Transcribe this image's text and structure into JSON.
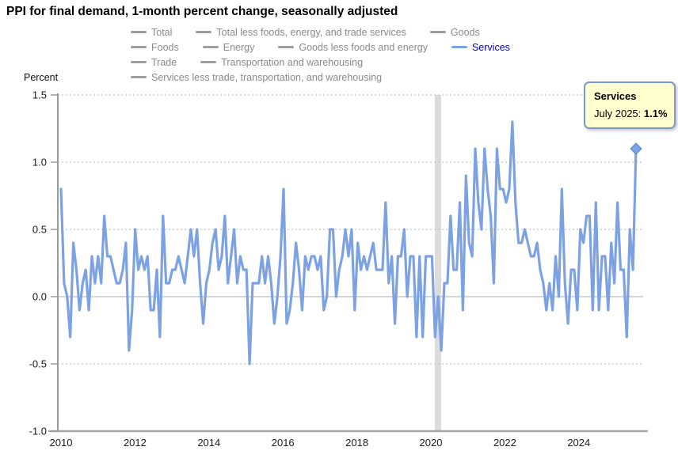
{
  "tooltip": {
    "series": "Services",
    "label": "July 2025:",
    "value": "1.1%"
  },
  "legend": {
    "rows": [
      [
        {
          "label": "Total",
          "active": false
        },
        {
          "label": "Total less foods, energy, and trade services",
          "active": false
        },
        {
          "label": "Goods",
          "active": false
        }
      ],
      [
        {
          "label": "Foods",
          "active": false
        },
        {
          "label": "Energy",
          "active": false
        },
        {
          "label": "Goods less foods and energy",
          "active": false
        },
        {
          "label": "Services",
          "active": true
        }
      ],
      [
        {
          "label": "Trade",
          "active": false
        },
        {
          "label": "Transportation and warehousing",
          "active": false
        }
      ],
      [
        {
          "label": "Services less trade, transportation, and warehousing",
          "active": false
        }
      ]
    ]
  },
  "colors": {
    "line": "#7ca2e4",
    "active_legend_text": "#0000cc",
    "inactive_legend": "#8a8a8a",
    "tooltip_bg": "#ffffd0",
    "tooltip_border": "#7d99cc",
    "recession_band": "#dcdcdc"
  },
  "chart_data": {
    "type": "line",
    "title": "PPI for final demand, 1-month percent change, seasonally adjusted",
    "ylabel": "Percent",
    "ylim": [
      -1.0,
      1.5
    ],
    "yticks": [
      "1.5",
      "1.0",
      "0.5",
      "0.0",
      "-0.5",
      "-1.0"
    ],
    "ytick_values": [
      1.5,
      1.0,
      0.5,
      0.0,
      -0.5,
      -1.0
    ],
    "xticks": [
      "2010",
      "2012",
      "2014",
      "2016",
      "2018",
      "2020",
      "2022",
      "2024"
    ],
    "grid": "dotted horizontal",
    "legend_position": "top",
    "x_start": "2010-01",
    "x_end": "2025-07",
    "frequency": "monthly",
    "recession_shading": {
      "from": "2020-02",
      "to": "2020-04"
    },
    "latest_point": {
      "month": "July 2025",
      "value": 1.1
    },
    "series": [
      {
        "name": "Services",
        "values": [
          0.8,
          0.1,
          0.0,
          -0.3,
          0.4,
          0.2,
          -0.1,
          0.1,
          0.2,
          -0.1,
          0.3,
          0.1,
          0.3,
          0.1,
          0.6,
          0.3,
          0.3,
          0.2,
          0.1,
          0.1,
          0.2,
          0.4,
          -0.4,
          -0.1,
          0.5,
          0.2,
          0.3,
          0.2,
          0.3,
          -0.1,
          -0.1,
          0.2,
          -0.3,
          0.6,
          0.1,
          0.1,
          0.2,
          0.2,
          0.3,
          0.2,
          0.1,
          0.3,
          0.5,
          0.3,
          0.5,
          0.1,
          -0.2,
          0.1,
          0.2,
          0.4,
          0.5,
          0.2,
          0.3,
          0.6,
          0.1,
          0.3,
          0.5,
          0.1,
          0.3,
          0.2,
          0.2,
          -0.5,
          0.1,
          0.1,
          0.1,
          0.3,
          0.1,
          0.3,
          0.1,
          -0.2,
          0.0,
          0.3,
          0.8,
          -0.2,
          -0.1,
          0.1,
          0.4,
          0.2,
          -0.1,
          0.3,
          0.2,
          0.3,
          0.3,
          0.2,
          0.3,
          -0.1,
          0.0,
          0.5,
          0.5,
          0.0,
          0.2,
          0.3,
          0.5,
          0.3,
          0.5,
          -0.1,
          0.4,
          0.2,
          0.3,
          0.2,
          0.3,
          0.4,
          0.2,
          0.2,
          0.2,
          0.7,
          0.1,
          0.3,
          -0.2,
          0.3,
          0.3,
          0.5,
          0.0,
          0.3,
          0.3,
          -0.3,
          0.3,
          -0.3,
          0.3,
          0.3,
          0.3,
          -0.3,
          0.0,
          -0.4,
          0.1,
          0.1,
          0.6,
          0.2,
          0.2,
          0.7,
          -0.1,
          0.9,
          0.4,
          0.3,
          1.1,
          0.7,
          0.5,
          1.1,
          0.8,
          0.6,
          0.1,
          1.1,
          0.8,
          0.8,
          0.7,
          0.8,
          1.3,
          0.7,
          0.4,
          0.4,
          0.5,
          0.4,
          0.3,
          0.3,
          0.4,
          0.2,
          0.1,
          -0.1,
          0.1,
          -0.1,
          0.3,
          0.0,
          0.8,
          0.1,
          -0.2,
          0.2,
          0.2,
          -0.1,
          0.5,
          0.4,
          0.6,
          0.6,
          -0.1,
          0.7,
          -0.1,
          0.3,
          0.3,
          -0.1,
          0.4,
          0.1,
          0.7,
          0.2,
          0.2,
          -0.3,
          0.5,
          0.2,
          1.1
        ]
      }
    ]
  }
}
